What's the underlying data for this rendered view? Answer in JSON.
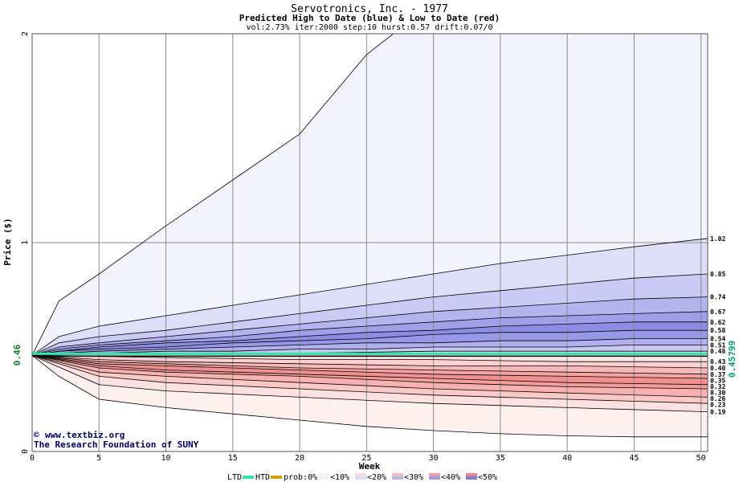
{
  "header": {
    "title": "Servotronics, Inc. - 1977",
    "subtitle": "Predicted High to Date (blue) &  Low to Date (red)",
    "params": "vol:2.73% iter:2000 step:10 hurst:0.57 drift:0.07/0"
  },
  "credit": {
    "copyright_symbol": "©",
    "line1": "www.textbiz.org",
    "line2": "The Research Foundation of SUNY"
  },
  "legend": {
    "ltd": "LTD",
    "htd": "HTD",
    "prob": "prob:0%",
    "items": [
      "<10%",
      "<20%",
      "<30%",
      "<40%",
      "<50%"
    ],
    "colors": {
      "ltd": "#2ee6a6",
      "htd": "#d4a000",
      "blue": [
        "#f2f2fd",
        "#dcdcf7",
        "#b8b8f0",
        "#9a9aea",
        "#7b7be2"
      ],
      "red": [
        "#fff0f0",
        "#ffd8d8",
        "#ffb8b8",
        "#fa9d9d",
        "#f08282"
      ]
    }
  },
  "chart_data": {
    "type": "area",
    "title": "Servotronics, Inc. - 1977",
    "xlabel": "Week",
    "ylabel": "Price ($)",
    "xlim": [
      0,
      50.5
    ],
    "ylim": [
      0,
      2
    ],
    "x_ticks": [
      "0",
      "5",
      "10",
      "15",
      "20",
      "25",
      "30",
      "35",
      "40",
      "45",
      "50"
    ],
    "y_ticks": [
      "0",
      "1",
      "2"
    ],
    "current_price": 0.46,
    "current_price_label": "0.46",
    "current_price_right_label": "0.45799",
    "grid": true,
    "high_to_date_bands": [
      {
        "name": "outer",
        "end": 2.0,
        "points": [
          [
            0,
            0.46
          ],
          [
            2,
            0.72
          ],
          [
            5,
            0.85
          ],
          [
            10,
            1.08
          ],
          [
            15,
            1.3
          ],
          [
            20,
            1.52
          ],
          [
            25,
            1.9
          ],
          [
            27,
            2.0
          ],
          [
            50.5,
            2.0
          ]
        ]
      },
      {
        "name": "p10",
        "end": 1.02,
        "points": [
          [
            0,
            0.46
          ],
          [
            2,
            0.55
          ],
          [
            5,
            0.6
          ],
          [
            10,
            0.65
          ],
          [
            15,
            0.7
          ],
          [
            20,
            0.75
          ],
          [
            25,
            0.8
          ],
          [
            30,
            0.85
          ],
          [
            35,
            0.9
          ],
          [
            40,
            0.94
          ],
          [
            45,
            0.98
          ],
          [
            50.5,
            1.02
          ]
        ]
      },
      {
        "name": "p20",
        "end": 0.85,
        "points": [
          [
            0,
            0.46
          ],
          [
            2,
            0.52
          ],
          [
            5,
            0.55
          ],
          [
            10,
            0.58
          ],
          [
            15,
            0.62
          ],
          [
            20,
            0.66
          ],
          [
            25,
            0.7
          ],
          [
            30,
            0.74
          ],
          [
            35,
            0.77
          ],
          [
            40,
            0.8
          ],
          [
            45,
            0.83
          ],
          [
            50.5,
            0.85
          ]
        ]
      },
      {
        "name": "p30",
        "end": 0.74,
        "points": [
          [
            0,
            0.46
          ],
          [
            2,
            0.5
          ],
          [
            5,
            0.52
          ],
          [
            10,
            0.55
          ],
          [
            15,
            0.58
          ],
          [
            20,
            0.61
          ],
          [
            25,
            0.64
          ],
          [
            30,
            0.67
          ],
          [
            35,
            0.69
          ],
          [
            40,
            0.71
          ],
          [
            45,
            0.73
          ],
          [
            50.5,
            0.74
          ]
        ]
      },
      {
        "name": "p35",
        "end": 0.67,
        "points": [
          [
            0,
            0.46
          ],
          [
            2,
            0.49
          ],
          [
            5,
            0.51
          ],
          [
            10,
            0.53
          ],
          [
            15,
            0.55
          ],
          [
            20,
            0.58
          ],
          [
            25,
            0.6
          ],
          [
            30,
            0.62
          ],
          [
            35,
            0.64
          ],
          [
            40,
            0.65
          ],
          [
            45,
            0.66
          ],
          [
            50.5,
            0.67
          ]
        ]
      },
      {
        "name": "p40",
        "end": 0.62,
        "points": [
          [
            0,
            0.46
          ],
          [
            2,
            0.48
          ],
          [
            5,
            0.5
          ],
          [
            10,
            0.52
          ],
          [
            15,
            0.53
          ],
          [
            20,
            0.55
          ],
          [
            25,
            0.57
          ],
          [
            30,
            0.58
          ],
          [
            35,
            0.6
          ],
          [
            40,
            0.61
          ],
          [
            45,
            0.62
          ],
          [
            50.5,
            0.62
          ]
        ]
      },
      {
        "name": "p45",
        "end": 0.58,
        "points": [
          [
            0,
            0.46
          ],
          [
            2,
            0.48
          ],
          [
            5,
            0.49
          ],
          [
            10,
            0.5
          ],
          [
            15,
            0.52
          ],
          [
            20,
            0.53
          ],
          [
            25,
            0.54
          ],
          [
            30,
            0.56
          ],
          [
            35,
            0.57
          ],
          [
            40,
            0.57
          ],
          [
            45,
            0.58
          ],
          [
            50.5,
            0.58
          ]
        ]
      },
      {
        "name": "p50",
        "end": 0.54,
        "points": [
          [
            0,
            0.46
          ],
          [
            2,
            0.47
          ],
          [
            5,
            0.48
          ],
          [
            10,
            0.49
          ],
          [
            15,
            0.5
          ],
          [
            20,
            0.51
          ],
          [
            25,
            0.52
          ],
          [
            30,
            0.52
          ],
          [
            35,
            0.53
          ],
          [
            40,
            0.53
          ],
          [
            45,
            0.54
          ],
          [
            50.5,
            0.54
          ]
        ]
      },
      {
        "name": "p55",
        "end": 0.51,
        "points": [
          [
            0,
            0.46
          ],
          [
            5,
            0.47
          ],
          [
            10,
            0.48
          ],
          [
            15,
            0.48
          ],
          [
            20,
            0.49
          ],
          [
            25,
            0.49
          ],
          [
            30,
            0.5
          ],
          [
            35,
            0.5
          ],
          [
            40,
            0.5
          ],
          [
            45,
            0.51
          ],
          [
            50.5,
            0.51
          ]
        ]
      },
      {
        "name": "p60",
        "end": 0.48,
        "points": [
          [
            0,
            0.46
          ],
          [
            10,
            0.47
          ],
          [
            20,
            0.47
          ],
          [
            30,
            0.48
          ],
          [
            40,
            0.48
          ],
          [
            50.5,
            0.48
          ]
        ]
      }
    ],
    "low_to_date_bands": [
      {
        "name": "p60",
        "end": 0.43,
        "points": [
          [
            0,
            0.46
          ],
          [
            10,
            0.45
          ],
          [
            20,
            0.44
          ],
          [
            30,
            0.44
          ],
          [
            40,
            0.43
          ],
          [
            50.5,
            0.43
          ]
        ]
      },
      {
        "name": "p55",
        "end": 0.4,
        "points": [
          [
            0,
            0.46
          ],
          [
            5,
            0.44
          ],
          [
            10,
            0.43
          ],
          [
            20,
            0.42
          ],
          [
            30,
            0.41
          ],
          [
            40,
            0.41
          ],
          [
            50.5,
            0.4
          ]
        ]
      },
      {
        "name": "p50",
        "end": 0.37,
        "points": [
          [
            0,
            0.46
          ],
          [
            5,
            0.43
          ],
          [
            10,
            0.42
          ],
          [
            20,
            0.4
          ],
          [
            30,
            0.39
          ],
          [
            40,
            0.38
          ],
          [
            50.5,
            0.37
          ]
        ]
      },
      {
        "name": "p45",
        "end": 0.35,
        "points": [
          [
            0,
            0.46
          ],
          [
            5,
            0.42
          ],
          [
            10,
            0.41
          ],
          [
            20,
            0.39
          ],
          [
            30,
            0.37
          ],
          [
            40,
            0.36
          ],
          [
            50.5,
            0.35
          ]
        ]
      },
      {
        "name": "p40",
        "end": 0.32,
        "points": [
          [
            0,
            0.46
          ],
          [
            5,
            0.41
          ],
          [
            10,
            0.39
          ],
          [
            20,
            0.37
          ],
          [
            30,
            0.35
          ],
          [
            40,
            0.33
          ],
          [
            50.5,
            0.32
          ]
        ]
      },
      {
        "name": "p35",
        "end": 0.3,
        "points": [
          [
            0,
            0.46
          ],
          [
            5,
            0.4
          ],
          [
            10,
            0.38
          ],
          [
            20,
            0.36
          ],
          [
            30,
            0.33
          ],
          [
            40,
            0.31
          ],
          [
            50.5,
            0.3
          ]
        ]
      },
      {
        "name": "p30",
        "end": 0.26,
        "points": [
          [
            0,
            0.46
          ],
          [
            5,
            0.38
          ],
          [
            10,
            0.36
          ],
          [
            20,
            0.33
          ],
          [
            30,
            0.3
          ],
          [
            40,
            0.28
          ],
          [
            50.5,
            0.26
          ]
        ]
      },
      {
        "name": "p20",
        "end": 0.23,
        "points": [
          [
            0,
            0.46
          ],
          [
            5,
            0.36
          ],
          [
            10,
            0.33
          ],
          [
            20,
            0.3
          ],
          [
            30,
            0.27
          ],
          [
            40,
            0.25
          ],
          [
            50.5,
            0.23
          ]
        ]
      },
      {
        "name": "p10",
        "end": 0.19,
        "points": [
          [
            0,
            0.46
          ],
          [
            5,
            0.32
          ],
          [
            10,
            0.29
          ],
          [
            20,
            0.26
          ],
          [
            30,
            0.23
          ],
          [
            40,
            0.21
          ],
          [
            50.5,
            0.19
          ]
        ]
      },
      {
        "name": "outer",
        "end": 0.07,
        "points": [
          [
            0,
            0.46
          ],
          [
            2,
            0.36
          ],
          [
            5,
            0.25
          ],
          [
            10,
            0.21
          ],
          [
            15,
            0.18
          ],
          [
            20,
            0.15
          ],
          [
            25,
            0.12
          ],
          [
            30,
            0.1
          ],
          [
            35,
            0.085
          ],
          [
            40,
            0.075
          ],
          [
            45,
            0.07
          ],
          [
            50.5,
            0.07
          ]
        ]
      }
    ],
    "right_labels": [
      "1.02",
      "0.85",
      "0.74",
      "0.67",
      "0.62",
      "0.58",
      "0.54",
      "0.51",
      "0.48",
      "0.43",
      "0.40",
      "0.37",
      "0.35",
      "0.32",
      "0.30",
      "0.26",
      "0.23",
      "0.19"
    ]
  }
}
